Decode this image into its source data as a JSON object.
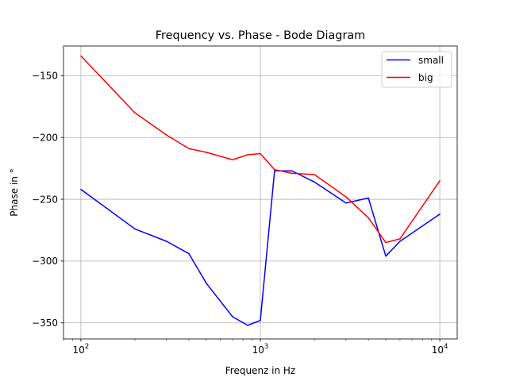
{
  "chart_data": {
    "type": "line",
    "title": "Frequency vs. Phase - Bode Diagram",
    "xlabel": "Frequenz in Hz",
    "ylabel": "Phase in °",
    "xscale": "log",
    "xlim": [
      80,
      12500
    ],
    "ylim": [
      -363,
      -126
    ],
    "grid": true,
    "legend_position": "top-right",
    "x_ticks": [
      {
        "value": 100,
        "base": "10",
        "exp": "2"
      },
      {
        "value": 1000,
        "base": "10",
        "exp": "3"
      },
      {
        "value": 10000,
        "base": "10",
        "exp": "4"
      }
    ],
    "y_ticks": [
      {
        "value": -150,
        "label": "−150"
      },
      {
        "value": -200,
        "label": "−200"
      },
      {
        "value": -250,
        "label": "−250"
      },
      {
        "value": -300,
        "label": "−300"
      },
      {
        "value": -350,
        "label": "−350"
      }
    ],
    "series": [
      {
        "name": "small",
        "color": "#0000ff",
        "x": [
          100,
          200,
          300,
          400,
          500,
          700,
          850,
          1000,
          1200,
          1500,
          2000,
          3000,
          4000,
          5000,
          6000,
          10000
        ],
        "y": [
          -242,
          -274,
          -284,
          -294,
          -318,
          -345,
          -352,
          -348,
          -227,
          -227,
          -236,
          -253,
          -249,
          -296,
          -284,
          -262
        ]
      },
      {
        "name": "big",
        "color": "#ff0000",
        "x": [
          100,
          200,
          300,
          400,
          500,
          700,
          850,
          1000,
          1200,
          1500,
          2000,
          3000,
          4000,
          5000,
          6000,
          10000
        ],
        "y": [
          -134,
          -180,
          -198,
          -209,
          -212,
          -218,
          -214,
          -213,
          -226,
          -229,
          -230,
          -248,
          -265,
          -285,
          -282,
          -235
        ]
      }
    ]
  }
}
